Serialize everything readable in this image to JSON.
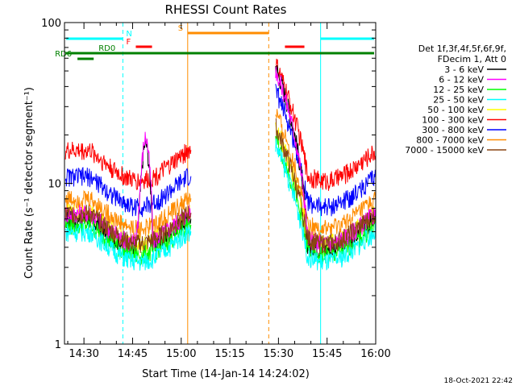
{
  "chart_data": {
    "type": "line",
    "title": "RHESSI Count Rates",
    "xlabel": "Start Time (14-Jan-14 14:24:02)",
    "ylabel": "Count Rate (s⁻¹ detector segment⁻¹)",
    "yscale": "log",
    "ylim": [
      1,
      100
    ],
    "xlim_minutes_after_start": [
      0,
      96
    ],
    "x_tick_labels": [
      "14:30",
      "14:45",
      "15:00",
      "15:15",
      "15:30",
      "15:45",
      "16:00"
    ],
    "x_tick_minutes": [
      6,
      21,
      36,
      51,
      66,
      81,
      96
    ],
    "y_tick_labels": [
      "1",
      "10",
      "100"
    ],
    "y_tick_values": [
      1,
      10,
      100
    ],
    "grid": false,
    "legend_header": [
      "Det 1f,3f,4f,5f,6f,9f,",
      "FDecim 1, Att 0"
    ],
    "legend_position": "right",
    "series": [
      {
        "name": "3 - 6 keV",
        "color": "#000000",
        "level": 6.0,
        "data_gap": [
          39,
          65
        ]
      },
      {
        "name": "6 - 12 keV",
        "color": "#ff00ff",
        "level": 6.5,
        "data_gap": [
          39,
          65
        ]
      },
      {
        "name": "12 - 25 keV",
        "color": "#00ff00",
        "level": 5.5,
        "data_gap": [
          39,
          65
        ]
      },
      {
        "name": "25 - 50 keV",
        "color": "#00ffff",
        "level": 5.0,
        "data_gap": [
          39,
          65
        ]
      },
      {
        "name": "50 - 100 keV",
        "color": "#ffff00",
        "level": 6.5,
        "data_gap": [
          39,
          65
        ]
      },
      {
        "name": "100 - 300 keV",
        "color": "#ff0000",
        "level": 16.0,
        "data_gap": [
          39,
          65
        ]
      },
      {
        "name": "300 - 800 keV",
        "color": "#0000ff",
        "level": 11.0,
        "data_gap": [
          39,
          65
        ]
      },
      {
        "name": "800 - 7000 keV",
        "color": "#ff8c00",
        "level": 8.0,
        "data_gap": [
          39,
          65
        ]
      },
      {
        "name": "7000 - 15000 keV",
        "color": "#8b4513",
        "level": 6.5,
        "data_gap": [
          39,
          65
        ]
      }
    ],
    "flag_bars": [
      {
        "label": "N",
        "color": "#00ffff",
        "ranges": [
          [
            0,
            18
          ],
          [
            79,
            96
          ]
        ]
      },
      {
        "label": "F",
        "color": "#ff0000",
        "ranges": [
          [
            22,
            27
          ],
          [
            68,
            74
          ]
        ]
      },
      {
        "label": "S",
        "color": "#ff8c00",
        "ranges": [
          [
            38,
            63
          ]
        ]
      },
      {
        "label": "RD0",
        "color": "#008000",
        "ranges": [
          [
            0,
            96
          ]
        ]
      },
      {
        "label": "RD6",
        "color": "#008000",
        "ranges": [
          [
            4,
            9
          ]
        ]
      }
    ],
    "vertical_markers": [
      {
        "color": "#00ffff",
        "style": "solid",
        "minute": 0
      },
      {
        "color": "#00ffff",
        "style": "dashed",
        "minute": 18
      },
      {
        "color": "#ff8c00",
        "style": "solid",
        "minute": 38
      },
      {
        "color": "#ff8c00",
        "style": "dashed",
        "minute": 63
      },
      {
        "color": "#00ffff",
        "style": "solid",
        "minute": 79
      },
      {
        "color": "#00ffff",
        "style": "dashed",
        "minute": 96
      }
    ]
  },
  "footer": {
    "timestamp": "18-Oct-2021 22:42"
  }
}
